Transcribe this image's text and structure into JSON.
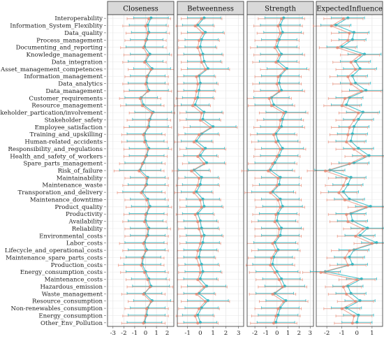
{
  "chart_data": {
    "type": "line",
    "orientation": "horizontal",
    "panels": [
      "Closeness",
      "Betweenness",
      "Strength",
      "ExpectedInfluence"
    ],
    "x_ticks": [
      [
        -3,
        -2,
        -1,
        0,
        1,
        2
      ],
      [
        -1,
        0,
        1,
        2,
        3
      ],
      [
        -2,
        -1,
        0,
        1,
        2,
        3
      ],
      [
        -2,
        -1,
        0,
        1
      ]
    ],
    "x_ranges": [
      [
        -3.5,
        2.6
      ],
      [
        -1.8,
        3.4
      ],
      [
        -2.7,
        3.3
      ],
      [
        -2.7,
        1.7
      ]
    ],
    "categories": [
      "Interoperability",
      "Information_System_Flexiblity",
      "Data_quality",
      "Process_management",
      "Documenting_and_reporting",
      "Knowledge_management",
      "Data_integration",
      "Asset_management_competences",
      "Information_management",
      "Data_analytics",
      "Data_management",
      "Customer_requirements",
      "Resource_management",
      "Stakeholder_partication/involvement",
      "Stakeholder_safety",
      "Employee_satisfaction",
      "Training_and_upskilling",
      "Human-related_accidents",
      "Responsibility_and_regulations",
      "Health_and_safety_of_workers",
      "Spare_parts_management",
      "Risk_of_failure",
      "Maintainability",
      "Maintenance_waste",
      "Transporation_and_delivery",
      "Maintenance_downtime",
      "Product_quality",
      "Productivity",
      "Availability",
      "Reliability",
      "Environmental_costs",
      "Labor_costs",
      "Lifecycle_and_operational_costs",
      "Maintenance_spare_parts_costs",
      "Production_costs",
      "Energy_consumption_costs",
      "Maintenance_costs",
      "Hazardous_emission",
      "Waste_management",
      "Resource_consumption",
      "Non-renewables_consumption",
      "Energy_consumption",
      "Other_Env_Pollution"
    ],
    "series": [
      {
        "color": "#29b8c4",
        "panels": [
          {
            "values": [
              0.5,
              0.2,
              0.3,
              0.1,
              -0.1,
              0.4,
              0.0,
              0.6,
              0.2,
              0.1,
              0.3,
              -0.4,
              -0.2,
              0.7,
              0.4,
              0.3,
              -0.1,
              0.0,
              0.3,
              0.1,
              -0.2,
              -0.5,
              0.2,
              0.1,
              -0.3,
              0.2,
              0.4,
              0.1,
              0.0,
              0.3,
              0.2,
              -0.1,
              0.1,
              -0.2,
              -0.3,
              0.0,
              0.3,
              0.5,
              -0.1,
              0.6,
              0.2,
              0.1,
              -0.1
            ],
            "half_widths": [
              1.6,
              1.7,
              1.6,
              1.5,
              1.7,
              1.8,
              1.6,
              1.7,
              1.6,
              1.7,
              1.8,
              1.5,
              1.6,
              1.7,
              1.6,
              1.8,
              1.6,
              1.7,
              1.8,
              1.6,
              1.7,
              1.9,
              1.6,
              1.7,
              1.8,
              1.6,
              1.7,
              1.6,
              1.6,
              1.7,
              1.6,
              1.8,
              1.7,
              1.6,
              1.7,
              1.8,
              1.6,
              1.7,
              1.6,
              1.7,
              1.6,
              1.7,
              1.6
            ]
          },
          {
            "values": [
              0.3,
              -0.2,
              0.4,
              0.1,
              0.0,
              0.2,
              0.3,
              0.6,
              -0.1,
              0.0,
              -0.1,
              -0.2,
              -0.4,
              0.3,
              0.2,
              1.0,
              0.1,
              -0.3,
              0.4,
              0.0,
              0.5,
              -0.5,
              0.1,
              0.0,
              -0.3,
              0.2,
              0.3,
              -0.2,
              0.0,
              0.1,
              0.3,
              0.2,
              0.0,
              -0.1,
              0.1,
              0.2,
              0.0,
              0.5,
              -0.1,
              0.6,
              0.1,
              -0.2,
              0.0
            ],
            "half_widths": [
              1.3,
              1.2,
              1.4,
              1.3,
              1.2,
              1.5,
              1.3,
              1.6,
              1.2,
              1.3,
              1.2,
              1.2,
              1.1,
              1.4,
              1.3,
              1.8,
              1.3,
              1.2,
              1.5,
              1.3,
              1.4,
              1.2,
              1.3,
              1.4,
              1.2,
              1.3,
              1.4,
              1.2,
              1.3,
              1.3,
              1.4,
              1.3,
              1.3,
              1.2,
              1.3,
              1.4,
              1.3,
              1.5,
              1.2,
              1.6,
              1.3,
              1.2,
              1.3
            ]
          },
          {
            "values": [
              0.6,
              0.3,
              0.5,
              0.2,
              0.0,
              0.4,
              0.1,
              0.9,
              0.3,
              0.2,
              0.4,
              -0.5,
              -0.3,
              0.8,
              0.5,
              0.4,
              -0.1,
              0.1,
              0.5,
              0.2,
              -0.2,
              -0.6,
              0.3,
              0.2,
              -0.4,
              0.3,
              0.5,
              0.1,
              0.0,
              0.4,
              0.3,
              -0.2,
              0.1,
              -0.3,
              -0.4,
              0.0,
              0.4,
              0.7,
              -0.2,
              0.8,
              0.3,
              0.1,
              -0.1
            ],
            "half_widths": [
              1.7,
              1.8,
              1.7,
              1.6,
              1.8,
              1.9,
              1.7,
              1.8,
              1.7,
              1.8,
              1.9,
              1.6,
              1.7,
              1.8,
              1.7,
              1.9,
              1.7,
              1.8,
              1.9,
              1.7,
              1.8,
              2.0,
              1.7,
              1.8,
              1.9,
              1.7,
              1.8,
              1.7,
              1.7,
              1.8,
              1.7,
              1.9,
              1.8,
              1.7,
              1.8,
              1.9,
              1.7,
              1.8,
              1.7,
              1.8,
              1.7,
              1.8,
              1.7
            ]
          },
          {
            "values": [
              -0.6,
              -1.4,
              -0.2,
              -0.3,
              -1.0,
              0.5,
              -0.1,
              0.2,
              -0.3,
              -0.1,
              0.6,
              -0.5,
              -0.7,
              0.4,
              0.1,
              -0.2,
              -0.3,
              -0.4,
              0.1,
              0.8,
              -0.2,
              -1.8,
              -0.4,
              -0.6,
              -0.9,
              -0.5,
              0.9,
              -0.4,
              -0.3,
              0.7,
              0.2,
              1.3,
              -0.2,
              -0.5,
              -0.3,
              -2.1,
              0.3,
              -0.6,
              -0.4,
              0.2,
              -0.7,
              0.1,
              0.0
            ],
            "half_widths": [
              1.1,
              1.0,
              1.0,
              0.9,
              1.0,
              1.1,
              1.0,
              1.1,
              1.0,
              1.0,
              1.1,
              0.9,
              1.0,
              1.1,
              1.0,
              1.0,
              1.0,
              1.0,
              1.0,
              1.1,
              1.0,
              1.0,
              1.0,
              1.0,
              1.0,
              1.0,
              1.0,
              1.0,
              1.0,
              1.1,
              1.0,
              1.0,
              1.0,
              1.0,
              1.0,
              1.0,
              1.0,
              1.0,
              1.0,
              1.0,
              1.0,
              1.0,
              1.0
            ]
          }
        ]
      },
      {
        "color": "#e8866f",
        "panels": [
          {
            "values": [
              0.3,
              0.0,
              0.2,
              0.0,
              -0.2,
              0.2,
              -0.1,
              0.5,
              0.1,
              0.0,
              0.2,
              -0.5,
              -0.3,
              0.6,
              0.3,
              0.2,
              -0.2,
              -0.1,
              0.2,
              0.0,
              -0.3,
              -0.6,
              0.1,
              0.0,
              -0.4,
              0.1,
              0.3,
              0.0,
              -0.1,
              0.2,
              0.1,
              -0.2,
              0.0,
              -0.3,
              -0.4,
              -0.1,
              0.2,
              0.4,
              -0.2,
              0.5,
              0.1,
              0.0,
              -0.2
            ],
            "half_widths": [
              2.0,
              2.1,
              2.0,
              1.9,
              2.1,
              2.2,
              2.0,
              2.1,
              2.0,
              2.1,
              2.2,
              1.9,
              2.0,
              2.1,
              2.0,
              2.2,
              2.0,
              2.1,
              2.2,
              2.0,
              2.1,
              2.3,
              2.0,
              2.1,
              2.2,
              2.0,
              2.1,
              2.0,
              2.0,
              2.1,
              2.0,
              2.2,
              2.1,
              2.0,
              2.1,
              2.2,
              2.0,
              2.1,
              2.0,
              2.1,
              2.0,
              2.1,
              2.0
            ]
          },
          {
            "values": [
              0.1,
              -0.4,
              0.2,
              -0.1,
              -0.2,
              0.0,
              0.1,
              0.4,
              -0.3,
              -0.2,
              -0.3,
              -0.4,
              -0.6,
              0.1,
              0.0,
              0.8,
              -0.1,
              -0.5,
              0.2,
              -0.2,
              0.3,
              -0.7,
              -0.1,
              -0.2,
              -0.5,
              0.0,
              0.1,
              -0.4,
              -0.2,
              -0.1,
              0.1,
              0.0,
              -0.2,
              -0.3,
              -0.1,
              0.0,
              -0.2,
              0.3,
              -0.3,
              0.4,
              -0.1,
              -0.4,
              -0.2
            ],
            "half_widths": [
              1.6,
              1.5,
              1.7,
              1.6,
              1.5,
              1.8,
              1.6,
              1.9,
              1.5,
              1.6,
              1.5,
              1.5,
              1.4,
              1.7,
              1.6,
              2.1,
              1.6,
              1.5,
              1.8,
              1.6,
              1.7,
              1.5,
              1.6,
              1.7,
              1.5,
              1.6,
              1.7,
              1.5,
              1.6,
              1.6,
              1.7,
              1.6,
              1.6,
              1.5,
              1.6,
              1.7,
              1.6,
              1.8,
              1.5,
              1.9,
              1.6,
              1.5,
              1.6
            ]
          },
          {
            "values": [
              0.4,
              0.1,
              0.3,
              0.0,
              -0.2,
              0.2,
              -0.1,
              0.7,
              0.1,
              0.0,
              0.2,
              -0.7,
              -0.5,
              0.6,
              0.3,
              0.2,
              -0.3,
              -0.1,
              0.3,
              0.0,
              -0.4,
              -0.8,
              0.1,
              0.0,
              -0.6,
              0.1,
              0.3,
              -0.1,
              -0.2,
              0.2,
              0.1,
              -0.4,
              -0.1,
              -0.5,
              -0.6,
              -0.2,
              0.2,
              0.5,
              -0.4,
              0.6,
              0.1,
              -0.1,
              -0.3
            ],
            "half_widths": [
              2.1,
              2.2,
              2.1,
              2.0,
              2.2,
              2.3,
              2.1,
              2.2,
              2.1,
              2.2,
              2.3,
              2.0,
              2.1,
              2.2,
              2.1,
              2.3,
              2.1,
              2.2,
              2.3,
              2.1,
              2.2,
              2.4,
              2.1,
              2.2,
              2.3,
              2.1,
              2.2,
              2.1,
              2.1,
              2.2,
              2.1,
              2.3,
              2.2,
              2.1,
              2.2,
              2.3,
              2.1,
              2.2,
              2.1,
              2.2,
              2.1,
              2.2,
              2.1
            ]
          },
          {
            "values": [
              -0.9,
              -1.7,
              -0.5,
              -0.6,
              -1.3,
              0.2,
              -0.4,
              -0.1,
              -0.6,
              -0.4,
              0.3,
              -0.8,
              -1.0,
              0.1,
              -0.2,
              -0.5,
              -0.6,
              -0.7,
              -0.2,
              0.5,
              -0.5,
              -2.1,
              -0.7,
              -0.9,
              -1.2,
              -0.8,
              0.6,
              -0.7,
              -0.6,
              0.4,
              -0.1,
              1.0,
              -0.5,
              -0.8,
              -0.6,
              -2.4,
              0.0,
              -0.9,
              -0.7,
              -0.1,
              -1.0,
              -0.2,
              -0.3
            ],
            "half_widths": [
              1.3,
              1.2,
              1.2,
              1.1,
              1.2,
              1.3,
              1.2,
              1.3,
              1.2,
              1.2,
              1.3,
              1.1,
              1.2,
              1.3,
              1.2,
              1.2,
              1.2,
              1.2,
              1.2,
              1.3,
              1.2,
              1.2,
              1.2,
              1.2,
              1.2,
              1.2,
              1.2,
              1.2,
              1.2,
              1.3,
              1.2,
              1.2,
              1.2,
              1.2,
              1.2,
              1.2,
              1.2,
              1.2,
              1.2,
              1.2,
              1.2,
              1.2,
              1.2
            ]
          }
        ]
      }
    ]
  }
}
